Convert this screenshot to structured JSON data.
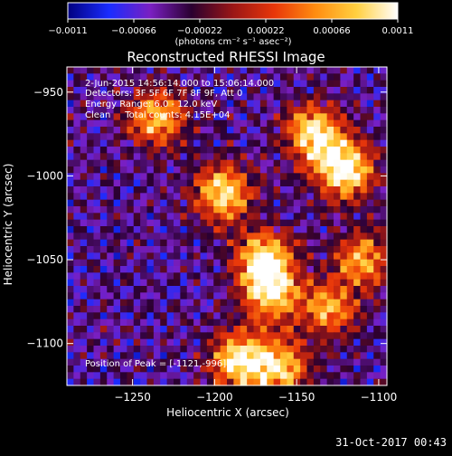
{
  "chart_data": {
    "type": "heatmap",
    "title": "Reconstructed RHESSI Image",
    "xlabel": "Heliocentric X (arcsec)",
    "ylabel": "Heliocentric Y (arcsec)",
    "xlim": [
      -1290,
      -1095
    ],
    "ylim": [
      -1125,
      -935
    ],
    "x_ticks": [
      {
        "value": -1250,
        "label": "−1250"
      },
      {
        "value": -1200,
        "label": "−1200"
      },
      {
        "value": -1150,
        "label": "−1150"
      },
      {
        "value": -1100,
        "label": "−1100"
      }
    ],
    "y_ticks": [
      {
        "value": -950,
        "label": "−950"
      },
      {
        "value": -1000,
        "label": "−1000"
      },
      {
        "value": -1050,
        "label": "−1050"
      },
      {
        "value": -1100,
        "label": "−1100"
      }
    ],
    "colorbar": {
      "min": -0.0011,
      "max": 0.0011,
      "tick_labels": [
        "−0.0011",
        "−0.00066",
        "−0.00022",
        "0.00022",
        "0.00066",
        "0.0011"
      ],
      "unit_label": "(photons cm⁻² s⁻¹ asec⁻²)",
      "colors": [
        "#000080",
        "#1a2cff",
        "#7a1fc2",
        "#2a0030",
        "#9a1616",
        "#e8360a",
        "#ff8c10",
        "#ffd040",
        "#ffffff"
      ]
    },
    "annotations": [
      "2-Jun-2015 14:56:14.000 to 15:06:14.000",
      "Detectors: 3F 5F 6F 7F 8F 9F, Att 0",
      "Energy Range: 6.0 - 12.0 keV",
      "Clean     Total counts: 4.15E+04",
      "Position of Peak = [-1121,-996]"
    ],
    "peak": {
      "x": -1121,
      "y": -996
    },
    "bright_ridges": [
      {
        "x": -1195,
        "y": -1010,
        "value": 0.00085
      },
      {
        "x": -1170,
        "y": -1050,
        "value": 0.0009
      },
      {
        "x": -1165,
        "y": -1070,
        "value": 0.0007
      },
      {
        "x": -1140,
        "y": -975,
        "value": 0.0009
      },
      {
        "x": -1121,
        "y": -996,
        "value": 0.0011
      },
      {
        "x": -1235,
        "y": -965,
        "value": 0.00065
      },
      {
        "x": -1185,
        "y": -1110,
        "value": 0.0009
      },
      {
        "x": -1160,
        "y": -1115,
        "value": 0.0007
      },
      {
        "x": -1110,
        "y": -1050,
        "value": 0.0005
      },
      {
        "x": -1130,
        "y": -1080,
        "value": 0.0005
      }
    ]
  },
  "footer": {
    "date": "31-Oct-2017 00:43"
  }
}
